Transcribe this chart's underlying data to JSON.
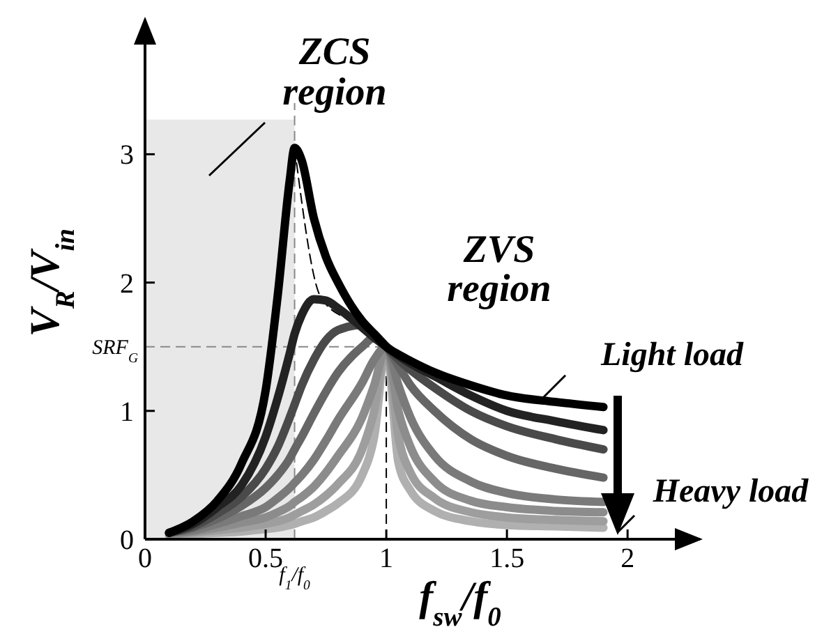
{
  "chart_data": {
    "type": "line",
    "xlabel": "f$_{sw}$/f$_{0}$",
    "ylabel": "V$_{R}$/V$_{in}$",
    "x": [
      0.1,
      0.2,
      0.3,
      0.4,
      0.5,
      0.55,
      0.6,
      0.62,
      0.65,
      0.7,
      0.75,
      0.8,
      0.9,
      0.95,
      1,
      1.05,
      1.1,
      1.2,
      1.35,
      1.5,
      1.7,
      1.9
    ],
    "series": [
      {
        "color": "#000000",
        "values": [
          0.05,
          0.14,
          0.3,
          0.59,
          1.16,
          1.9,
          2.8,
          3.05,
          2.95,
          2.5,
          2.2,
          2.0,
          1.7,
          1.6,
          1.5,
          1.44,
          1.39,
          1.3,
          1.2,
          1.12,
          1.07,
          1.03
        ]
      },
      {
        "color": "#222222",
        "values": [
          0.05,
          0.12,
          0.25,
          0.42,
          0.8,
          1.1,
          1.45,
          1.6,
          1.75,
          1.87,
          1.86,
          1.8,
          1.65,
          1.57,
          1.5,
          1.43,
          1.37,
          1.27,
          1.12,
          1.0,
          0.92,
          0.85
        ]
      },
      {
        "color": "#4a4a4a",
        "values": [
          0.05,
          0.1,
          0.2,
          0.33,
          0.55,
          0.72,
          0.95,
          1.05,
          1.2,
          1.4,
          1.55,
          1.63,
          1.67,
          1.6,
          1.5,
          1.4,
          1.32,
          1.18,
          1.0,
          0.88,
          0.78,
          0.7
        ]
      },
      {
        "color": "#666666",
        "values": [
          0.05,
          0.09,
          0.16,
          0.26,
          0.4,
          0.5,
          0.63,
          0.7,
          0.8,
          0.98,
          1.15,
          1.3,
          1.5,
          1.57,
          1.5,
          1.35,
          1.2,
          1.0,
          0.78,
          0.65,
          0.55,
          0.48
        ]
      },
      {
        "color": "#7a7a7a",
        "values": [
          0.05,
          0.07,
          0.12,
          0.18,
          0.25,
          0.32,
          0.4,
          0.44,
          0.5,
          0.62,
          0.77,
          0.93,
          1.22,
          1.4,
          1.5,
          1.2,
          0.95,
          0.65,
          0.45,
          0.36,
          0.31,
          0.29
        ]
      },
      {
        "color": "#8c8c8c",
        "values": [
          0.04,
          0.06,
          0.09,
          0.13,
          0.17,
          0.21,
          0.26,
          0.29,
          0.33,
          0.41,
          0.52,
          0.65,
          0.95,
          1.2,
          1.5,
          1.0,
          0.72,
          0.45,
          0.3,
          0.25,
          0.22,
          0.21
        ]
      },
      {
        "color": "#9e9e9e",
        "values": [
          0.04,
          0.05,
          0.07,
          0.09,
          0.12,
          0.14,
          0.17,
          0.19,
          0.22,
          0.27,
          0.34,
          0.43,
          0.7,
          1.0,
          1.5,
          0.8,
          0.52,
          0.32,
          0.21,
          0.17,
          0.15,
          0.14
        ]
      },
      {
        "color": "#b0b0b0",
        "values": [
          0.03,
          0.04,
          0.05,
          0.06,
          0.08,
          0.09,
          0.11,
          0.12,
          0.14,
          0.17,
          0.22,
          0.28,
          0.5,
          0.8,
          1.5,
          0.6,
          0.38,
          0.22,
          0.14,
          0.11,
          0.1,
          0.09
        ]
      },
      {
        "type": "line",
        "line_style": "dashed",
        "color": "#000000",
        "x": [
          0.62,
          0.73,
          0.87,
          1
        ],
        "values": [
          3.05,
          1.88,
          1.68,
          1.5
        ]
      }
    ],
    "xlim": [
      0,
      2.3
    ],
    "ylim": [
      0,
      4.05
    ],
    "xticks": [
      0,
      0.5,
      1,
      1.5,
      2
    ],
    "yticks": [
      0,
      1,
      2,
      3
    ],
    "ref_lines": [
      {
        "axis": "x",
        "value": 0.62,
        "label": "f$_{1}$/f$_{0}$",
        "line_style": "dashed",
        "color": "#888888"
      },
      {
        "axis": "y",
        "value": 1.5,
        "label": "SRF$_{G}$",
        "line_style": "dashed",
        "color": "#888888"
      },
      {
        "axis": "x",
        "value": 1,
        "line_style": "dashed",
        "color": "#000000"
      }
    ],
    "bands": [
      {
        "axis": "x",
        "from": 0,
        "to": 0.62,
        "color": "#e8e8e8"
      }
    ],
    "annotations": [
      "ZCS region",
      "ZVS region",
      {
        "text": "Light load",
        "x": 1.65,
        "y": 1.06
      },
      "Heavy load"
    ],
    "line_style": "solid",
    "marker": "none",
    "grid": false
  }
}
